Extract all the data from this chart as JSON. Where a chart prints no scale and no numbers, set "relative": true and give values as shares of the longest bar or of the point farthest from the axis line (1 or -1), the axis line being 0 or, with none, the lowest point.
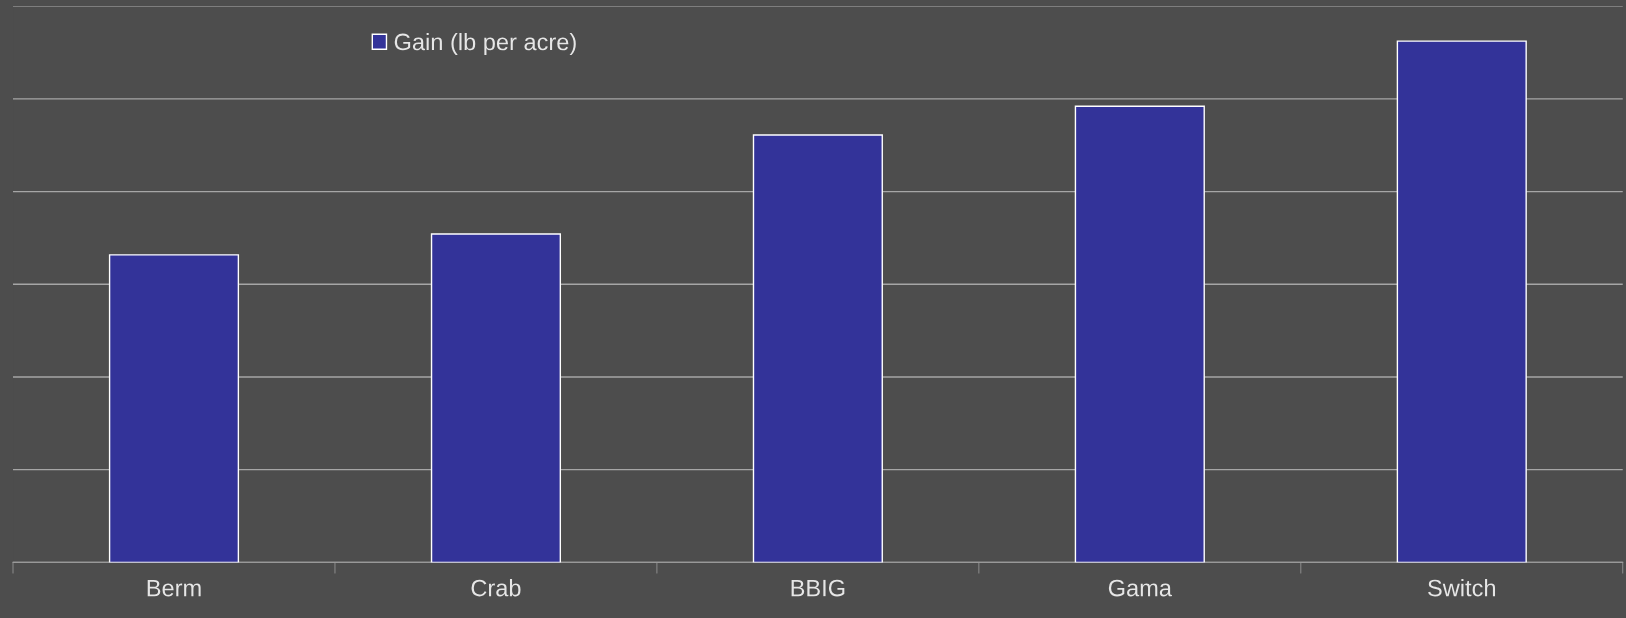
{
  "chart_data": {
    "type": "bar",
    "relative": true,
    "categories": [
      "Berm",
      "Crab",
      "BBIG",
      "Gama",
      "Switch"
    ],
    "series": [
      {
        "name": "Gain (lb per acre)",
        "color": "#333399",
        "values": [
          0.59,
          0.63,
          0.82,
          0.875,
          1
        ]
      }
    ],
    "grid": "y",
    "legend": "top"
  }
}
